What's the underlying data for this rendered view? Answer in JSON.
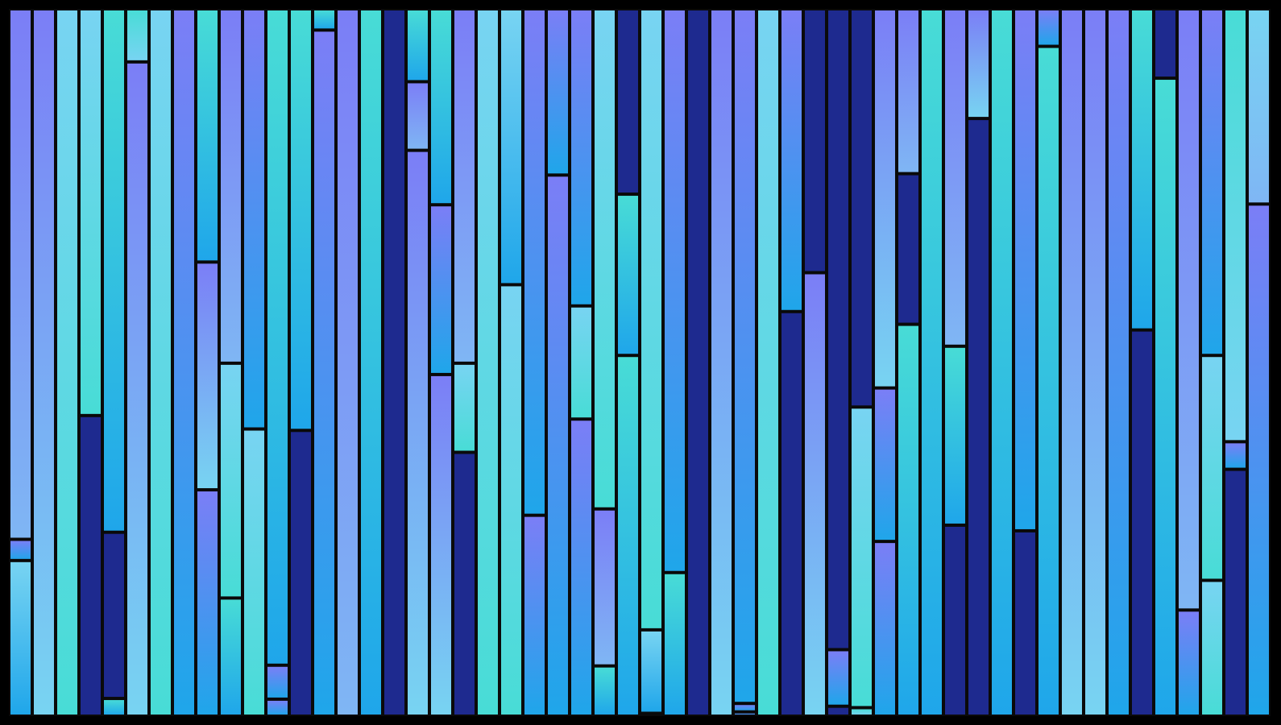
{
  "palette": {
    "background": "#000000",
    "outline": "#0a0a0a",
    "navy": "#1e2a8f",
    "periwinkle": "#7b7ef6",
    "sky": "#78d4f2",
    "turquoise": "#48dcd6",
    "azure": "#1fa6ea",
    "lavender": "#7fb6f4"
  },
  "columns": [
    [
      [
        "periwinkle",
        "lavender",
        0.75
      ],
      [
        "periwinkle",
        "azure",
        0.03
      ],
      [
        "sky",
        "azure",
        0.22
      ]
    ],
    [
      [
        "periwinkle",
        "sky",
        1.0
      ]
    ],
    [
      [
        "sky",
        "turquoise",
        1.0
      ]
    ],
    [
      [
        "sky",
        "turquoise",
        0.575
      ],
      [
        "navy",
        "navy",
        0.425
      ]
    ],
    [
      [
        "turquoise",
        "azure",
        0.74
      ],
      [
        "navy",
        "navy",
        0.235
      ],
      [
        "turquoise",
        "azure",
        0.025
      ]
    ],
    [
      [
        "turquoise",
        "sky",
        0.075
      ],
      [
        "periwinkle",
        "sky",
        0.925
      ]
    ],
    [
      [
        "sky",
        "turquoise",
        1.0
      ]
    ],
    [
      [
        "periwinkle",
        "azure",
        1.0
      ]
    ],
    [
      [
        "turquoise",
        "azure",
        0.358
      ],
      [
        "periwinkle",
        "sky",
        0.322
      ],
      [
        "periwinkle",
        "azure",
        0.32
      ]
    ],
    [
      [
        "periwinkle",
        "lavender",
        0.501
      ],
      [
        "sky",
        "turquoise",
        0.332
      ],
      [
        "turquoise",
        "azure",
        0.167
      ]
    ],
    [
      [
        "periwinkle",
        "azure",
        0.594
      ],
      [
        "sky",
        "turquoise",
        0.406
      ]
    ],
    [
      [
        "turquoise",
        "azure",
        0.928
      ],
      [
        "periwinkle",
        "azure",
        0.048
      ],
      [
        "periwinkle",
        "azure",
        0.024
      ]
    ],
    [
      [
        "turquoise",
        "azure",
        0.596
      ],
      [
        "navy",
        "navy",
        0.404
      ]
    ],
    [
      [
        "turquoise",
        "azure",
        0.03
      ],
      [
        "periwinkle",
        "azure",
        0.97
      ]
    ],
    [
      [
        "periwinkle",
        "lavender",
        1.0
      ]
    ],
    [
      [
        "turquoise",
        "azure",
        1.0
      ]
    ],
    [
      [
        "navy",
        "navy",
        1.0
      ]
    ],
    [
      [
        "turquoise",
        "azure",
        0.103
      ],
      [
        "periwinkle",
        "lavender",
        0.097
      ],
      [
        "periwinkle",
        "sky",
        0.8
      ]
    ],
    [
      [
        "turquoise",
        "azure",
        0.277
      ],
      [
        "periwinkle",
        "azure",
        0.24
      ],
      [
        "periwinkle",
        "sky",
        0.483
      ]
    ],
    [
      [
        "periwinkle",
        "lavender",
        0.501
      ],
      [
        "sky",
        "turquoise",
        0.126
      ],
      [
        "navy",
        "navy",
        0.373
      ]
    ],
    [
      [
        "sky",
        "turquoise",
        1.0
      ]
    ],
    [
      [
        "sky",
        "azure",
        0.39
      ],
      [
        "sky",
        "turquoise",
        0.61
      ]
    ],
    [
      [
        "periwinkle",
        "azure",
        0.716
      ],
      [
        "periwinkle",
        "azure",
        0.284
      ]
    ],
    [
      [
        "periwinkle",
        "azure",
        0.235
      ],
      [
        "periwinkle",
        "azure",
        0.765
      ]
    ],
    [
      [
        "periwinkle",
        "azure",
        0.42
      ],
      [
        "sky",
        "turquoise",
        0.16
      ],
      [
        "periwinkle",
        "azure",
        0.42
      ]
    ],
    [
      [
        "sky",
        "turquoise",
        0.707
      ],
      [
        "periwinkle",
        "lavender",
        0.222
      ],
      [
        "turquoise",
        "azure",
        0.071
      ]
    ],
    [
      [
        "navy",
        "navy",
        0.262
      ],
      [
        "turquoise",
        "azure",
        0.228
      ],
      [
        "turquoise",
        "azure",
        0.51
      ]
    ],
    [
      [
        "sky",
        "turquoise",
        0.878
      ],
      [
        "sky",
        "azure",
        0.118
      ],
      [
        "navy",
        "navy",
        0.004
      ]
    ],
    [
      [
        "periwinkle",
        "azure",
        0.797
      ],
      [
        "turquoise",
        "azure",
        0.203
      ]
    ],
    [
      [
        "navy",
        "navy",
        1.0
      ]
    ],
    [
      [
        "periwinkle",
        "sky",
        1.0
      ]
    ],
    [
      [
        "periwinkle",
        "azure",
        0.982
      ],
      [
        "periwinkle",
        "azure",
        0.012
      ],
      [
        "periwinkle",
        "azure",
        0.006
      ]
    ],
    [
      [
        "sky",
        "turquoise",
        1.0
      ]
    ],
    [
      [
        "periwinkle",
        "azure",
        0.428
      ],
      [
        "navy",
        "navy",
        0.572
      ]
    ],
    [
      [
        "navy",
        "navy",
        0.373
      ],
      [
        "periwinkle",
        "sky",
        0.627
      ]
    ],
    [
      [
        "navy",
        "navy",
        0.906
      ],
      [
        "periwinkle",
        "azure",
        0.08
      ],
      [
        "navy",
        "navy",
        0.014
      ]
    ],
    [
      [
        "navy",
        "navy",
        0.563
      ],
      [
        "sky",
        "turquoise",
        0.425
      ],
      [
        "turquoise",
        "sky",
        0.012
      ]
    ],
    [
      [
        "periwinkle",
        "sky",
        0.536
      ],
      [
        "periwinkle",
        "azure",
        0.217
      ],
      [
        "periwinkle",
        "azure",
        0.247
      ]
    ],
    [
      [
        "periwinkle",
        "lavender",
        0.233
      ],
      [
        "navy",
        "navy",
        0.213
      ],
      [
        "turquoise",
        "azure",
        0.554
      ]
    ],
    [
      [
        "turquoise",
        "azure",
        1.0
      ]
    ],
    [
      [
        "periwinkle",
        "lavender",
        0.477
      ],
      [
        "turquoise",
        "azure",
        0.253
      ],
      [
        "navy",
        "navy",
        0.27
      ]
    ],
    [
      [
        "periwinkle",
        "sky",
        0.155
      ],
      [
        "navy",
        "navy",
        0.845
      ]
    ],
    [
      [
        "turquoise",
        "azure",
        1.0
      ]
    ],
    [
      [
        "periwinkle",
        "azure",
        0.738
      ],
      [
        "navy",
        "navy",
        0.262
      ]
    ],
    [
      [
        "periwinkle",
        "azure",
        0.053
      ],
      [
        "turquoise",
        "azure",
        0.947
      ]
    ],
    [
      [
        "periwinkle",
        "sky",
        1.0
      ]
    ],
    [
      [
        "periwinkle",
        "sky",
        1.0
      ]
    ],
    [
      [
        "periwinkle",
        "azure",
        1.0
      ]
    ],
    [
      [
        "turquoise",
        "azure",
        0.454
      ],
      [
        "navy",
        "navy",
        0.546
      ]
    ],
    [
      [
        "navy",
        "navy",
        0.098
      ],
      [
        "turquoise",
        "azure",
        0.902
      ]
    ],
    [
      [
        "periwinkle",
        "lavender",
        0.85
      ],
      [
        "periwinkle",
        "azure",
        0.15
      ]
    ],
    [
      [
        "periwinkle",
        "azure",
        0.49
      ],
      [
        "sky",
        "turquoise",
        0.318
      ],
      [
        "sky",
        "turquoise",
        0.192
      ]
    ],
    [
      [
        "turquoise",
        "sky",
        0.612
      ],
      [
        "periwinkle",
        "azure",
        0.039
      ],
      [
        "navy",
        "navy",
        0.349
      ]
    ],
    [
      [
        "sky",
        "lavender",
        0.276
      ],
      [
        "periwinkle",
        "azure",
        0.724
      ]
    ]
  ]
}
